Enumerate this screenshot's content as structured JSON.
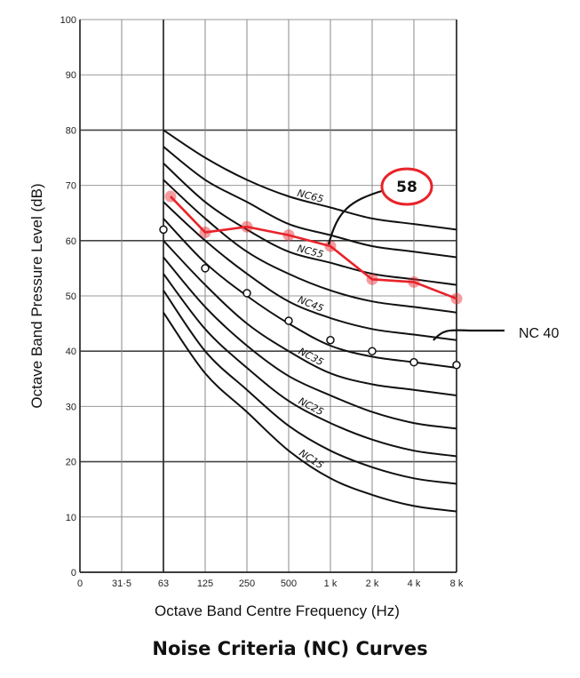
{
  "title": "Noise Criteria (NC) Curves",
  "chart_data": {
    "type": "line",
    "title": "Noise Criteria (NC) Curves",
    "xlabel": "Octave Band Centre Frequency (Hz)",
    "ylabel": "Octave Band Pressure Level (dB)",
    "x_tick_labels": [
      "0",
      "31·5",
      "63",
      "125",
      "250",
      "500",
      "1 k",
      "2 k",
      "4 k",
      "8 k"
    ],
    "y_ticks": [
      0,
      10,
      20,
      30,
      40,
      50,
      60,
      70,
      80,
      90,
      100
    ],
    "ylim": [
      0,
      100
    ],
    "grid": true,
    "nc_curves": [
      {
        "name": "NC15",
        "values": [
          47,
          36,
          29,
          22,
          17,
          14,
          12,
          11
        ]
      },
      {
        "name": "",
        "values": [
          51,
          40,
          33,
          26.5,
          22,
          19,
          17,
          16
        ]
      },
      {
        "name": "NC25",
        "values": [
          54,
          44,
          37,
          31,
          27,
          24,
          22,
          21
        ]
      },
      {
        "name": "",
        "values": [
          57,
          48,
          41,
          35.5,
          32,
          29,
          27,
          26
        ]
      },
      {
        "name": "NC35",
        "values": [
          60,
          52,
          45,
          40,
          36,
          34,
          33,
          32
        ]
      },
      {
        "name": "",
        "values": [
          64,
          56,
          50,
          45,
          41,
          39,
          38,
          37
        ]
      },
      {
        "name": "NC45",
        "values": [
          67,
          60,
          54,
          49,
          46,
          44,
          43,
          42
        ]
      },
      {
        "name": "",
        "values": [
          71,
          64,
          58,
          54,
          51,
          49,
          48,
          47
        ]
      },
      {
        "name": "NC55",
        "values": [
          74,
          67,
          62,
          58,
          56,
          54,
          53,
          52
        ]
      },
      {
        "name": "",
        "values": [
          77,
          71,
          67,
          63,
          61,
          59,
          58,
          57
        ]
      },
      {
        "name": "NC65",
        "values": [
          80,
          75,
          71,
          68,
          66,
          64,
          63,
          62
        ]
      }
    ],
    "series": [
      {
        "color": "#e8232a",
        "x": [
          63,
          125,
          250,
          500,
          1000,
          2000,
          4000,
          8000
        ],
        "values": [
          68,
          61.5,
          62.5,
          61,
          59,
          53,
          52.5,
          49.5
        ]
      },
      {
        "color": "#111111",
        "x": [
          63,
          125,
          250,
          500,
          1000,
          2000,
          4000,
          8000
        ],
        "values": [
          62,
          55,
          50.5,
          45.5,
          42,
          40,
          38,
          37.5
        ]
      }
    ],
    "annotations": [
      {
        "text": "58",
        "style": "red-circled"
      },
      {
        "text": "NC 40",
        "style": "plain"
      }
    ]
  }
}
